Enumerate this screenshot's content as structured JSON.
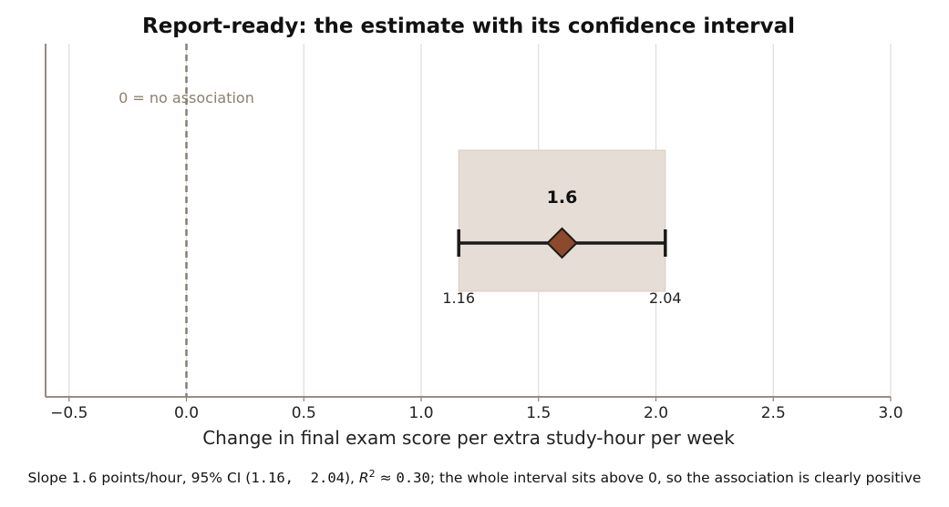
{
  "chart_data": {
    "type": "forest",
    "title": "Report-ready: the estimate with its confidence interval",
    "xlabel": "Change in final exam score per extra study-hour per week",
    "ylabel": "",
    "xlim": [
      -0.6,
      3.0
    ],
    "xticks": [
      -0.5,
      0.0,
      0.5,
      1.0,
      1.5,
      2.0,
      2.5,
      3.0
    ],
    "xtick_labels": [
      "−0.5",
      "0.0",
      "0.5",
      "1.0",
      "1.5",
      "2.0",
      "2.5",
      "3.0"
    ],
    "grid": "vertical",
    "estimate": 1.6,
    "estimate_label": "1.6",
    "ci_lower": 1.16,
    "ci_upper": 2.04,
    "ci_lower_label": "1.16",
    "ci_upper_label": "2.04",
    "reference_line": {
      "x": 0.0,
      "label": "0 = no association"
    },
    "colors": {
      "point": "#8b4a2b",
      "ci_band": "#e5ddd6",
      "whisker": "#1a1a1a",
      "reference_line": "#8a7e72",
      "axis": "#8a7e72",
      "grid": "#dddddd"
    }
  },
  "caption": {
    "t1": "Slope ",
    "slope": "1.6",
    "t2": " points/hour, 95% CI (",
    "ci": "1.16,  2.04",
    "t3": "), ",
    "r2_symbol": "R",
    "r2_exp": "2",
    "t4": " ≈ ",
    "r2_value": "0.30",
    "t5": "; the whole interval sits above 0, so the association is clearly positive"
  }
}
